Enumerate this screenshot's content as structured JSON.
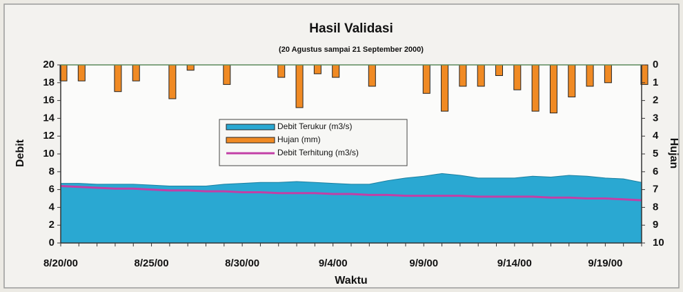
{
  "chart_data": {
    "type": "combo",
    "title": "Hasil Validasi",
    "subtitle": "(20 Agustus sampai 21 September 2000)",
    "x_label": "Waktu",
    "y_label": "Debit",
    "y2_label": "Hujan",
    "categories": [
      "8/20/00",
      null,
      null,
      null,
      null,
      "8/25/00",
      null,
      null,
      null,
      null,
      "8/30/00",
      null,
      null,
      null,
      null,
      "9/4/00",
      null,
      null,
      null,
      null,
      "9/9/00",
      null,
      null,
      null,
      null,
      "9/14/00",
      null,
      null,
      null,
      null,
      "9/19/00",
      null,
      null
    ],
    "ylim": [
      0,
      20
    ],
    "yticks": [
      0,
      2,
      4,
      6,
      8,
      10,
      12,
      14,
      16,
      18,
      20
    ],
    "y2lim": [
      10,
      0
    ],
    "y2ticks": [
      0,
      1,
      2,
      3,
      4,
      5,
      6,
      7,
      8,
      9,
      10
    ],
    "series": [
      {
        "name": "Debit Terukur (m3/s)",
        "type": "area",
        "color": "#2aa8d2",
        "values": [
          6.7,
          6.7,
          6.6,
          6.6,
          6.6,
          6.5,
          6.4,
          6.4,
          6.4,
          6.6,
          6.7,
          6.8,
          6.8,
          6.9,
          6.8,
          6.7,
          6.6,
          6.6,
          7.0,
          7.3,
          7.5,
          7.8,
          7.6,
          7.3,
          7.3,
          7.3,
          7.5,
          7.4,
          7.6,
          7.5,
          7.3,
          7.2,
          6.8
        ]
      },
      {
        "name": "Hujan (mm)",
        "type": "bar",
        "axis": "y2",
        "color": "#f08a24",
        "values": [
          0.9,
          0.9,
          0,
          1.5,
          0.9,
          0,
          1.9,
          0.3,
          0,
          1.1,
          0,
          0,
          0.7,
          2.4,
          0.5,
          0.7,
          0,
          1.2,
          0,
          0,
          1.6,
          2.6,
          1.2,
          1.2,
          0.6,
          1.4,
          2.6,
          2.7,
          1.8,
          1.2,
          1.0,
          0,
          1.1
        ]
      },
      {
        "name": "Debit Terhitung (m3/s)",
        "type": "line",
        "color": "#c23fa6",
        "values": [
          6.4,
          6.3,
          6.2,
          6.1,
          6.1,
          6.0,
          5.9,
          5.9,
          5.8,
          5.8,
          5.7,
          5.7,
          5.6,
          5.6,
          5.6,
          5.5,
          5.5,
          5.4,
          5.4,
          5.3,
          5.3,
          5.3,
          5.3,
          5.2,
          5.2,
          5.2,
          5.2,
          5.1,
          5.1,
          5.0,
          5.0,
          4.9,
          4.8
        ]
      }
    ]
  }
}
